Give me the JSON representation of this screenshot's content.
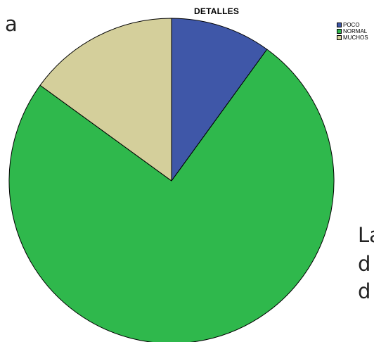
{
  "background_fragments": {
    "left_line": "a",
    "right_lines": [
      "La",
      "d",
      "d"
    ]
  },
  "chart_data": {
    "type": "pie",
    "title": "DETALLES",
    "slices": [
      {
        "label": "POCO",
        "value": 10,
        "color": "#3f57a8"
      },
      {
        "label": "NORMAL",
        "value": 75,
        "color": "#2fb84c"
      },
      {
        "label": "MUCHOS",
        "value": 15,
        "color": "#d4cf9b"
      }
    ],
    "start_angle_deg": 0,
    "direction": "clockwise",
    "legend_position": "top-right"
  }
}
